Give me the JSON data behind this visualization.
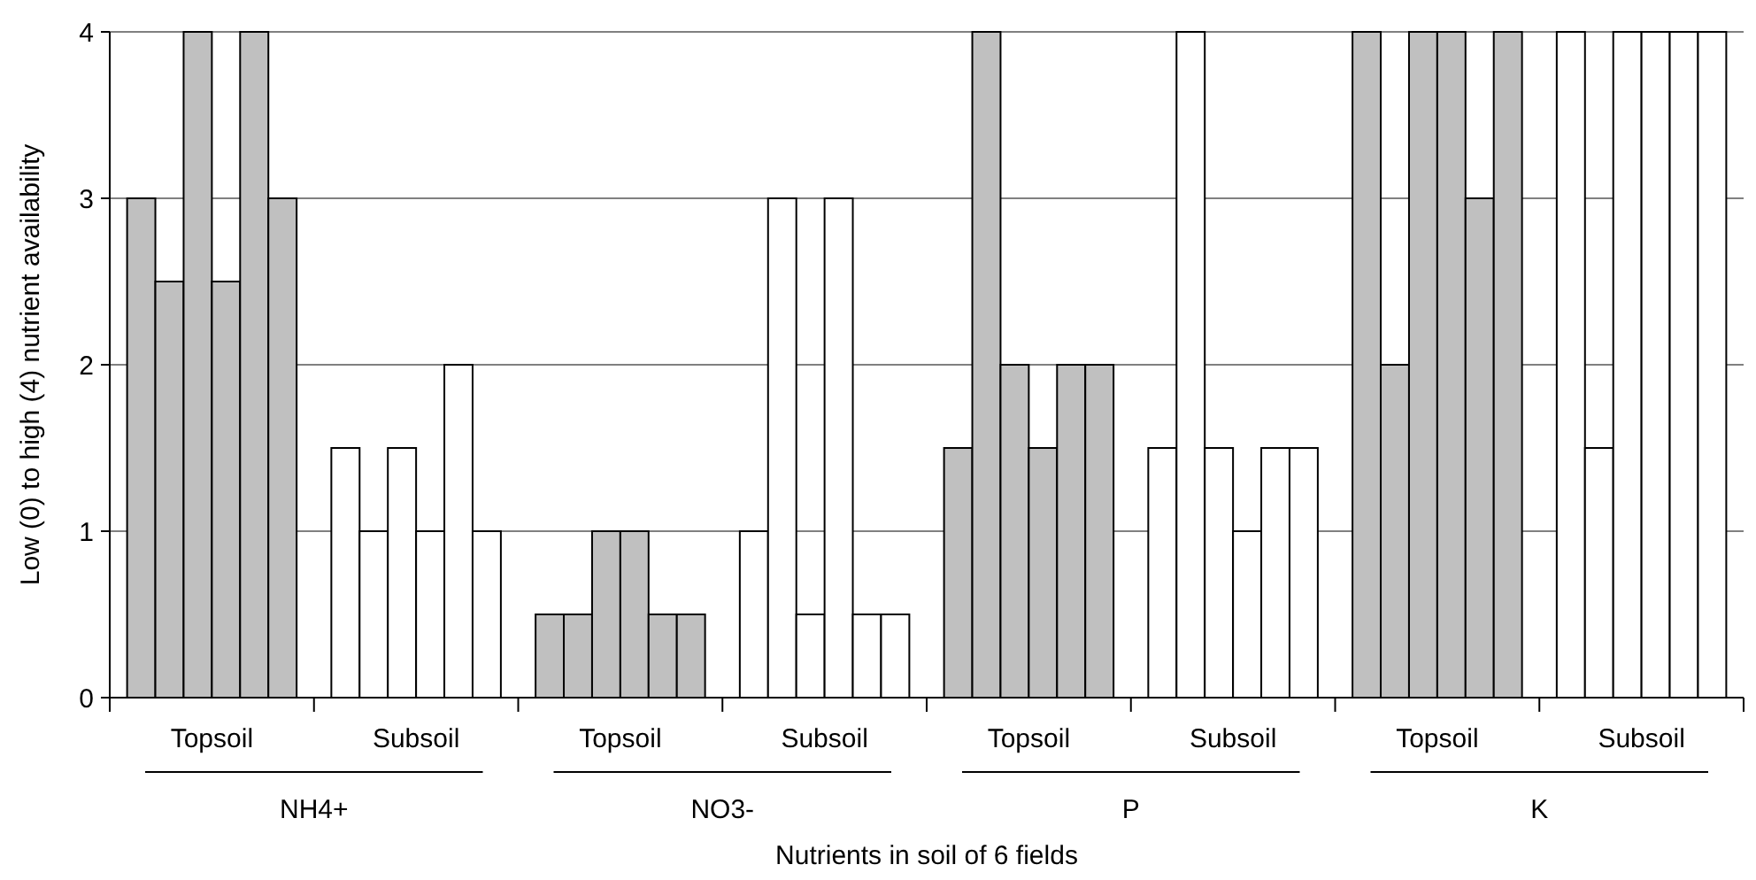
{
  "chart_data": {
    "type": "bar",
    "xlabel": "Nutrients in soil of 6 fields",
    "ylabel": "Low (0) to high (4) nutrient availability",
    "categories": [
      "Topsoil",
      "Subsoil",
      "Topsoil",
      "Subsoil",
      "Topsoil",
      "Subsoil",
      "Topsoil",
      "Subsoil"
    ],
    "annotations": [
      "NH4+",
      "NO3-",
      "P",
      "K"
    ],
    "series": [
      {
        "colors": [
          "#c0c0c0",
          "#ffffff",
          "#c0c0c0",
          "#ffffff",
          "#c0c0c0",
          "#ffffff",
          "#c0c0c0",
          "#ffffff"
        ],
        "values": [
          3,
          1.5,
          0.5,
          1,
          1.5,
          1.5,
          4,
          4
        ]
      },
      {
        "colors": [
          "#c0c0c0",
          "#ffffff",
          "#c0c0c0",
          "#ffffff",
          "#c0c0c0",
          "#ffffff",
          "#c0c0c0",
          "#ffffff"
        ],
        "values": [
          2.5,
          1,
          0.5,
          3,
          4,
          4,
          2,
          1.5
        ]
      },
      {
        "colors": [
          "#c0c0c0",
          "#ffffff",
          "#c0c0c0",
          "#ffffff",
          "#c0c0c0",
          "#ffffff",
          "#c0c0c0",
          "#ffffff"
        ],
        "values": [
          4,
          1.5,
          1,
          0.5,
          2,
          1.5,
          4,
          4
        ]
      },
      {
        "colors": [
          "#c0c0c0",
          "#ffffff",
          "#c0c0c0",
          "#ffffff",
          "#c0c0c0",
          "#ffffff",
          "#c0c0c0",
          "#ffffff"
        ],
        "values": [
          2.5,
          1,
          1,
          3,
          1.5,
          1,
          4,
          4
        ]
      },
      {
        "colors": [
          "#c0c0c0",
          "#ffffff",
          "#c0c0c0",
          "#ffffff",
          "#c0c0c0",
          "#ffffff",
          "#c0c0c0",
          "#ffffff"
        ],
        "values": [
          4,
          2,
          0.5,
          0.5,
          2,
          1.5,
          3,
          4
        ]
      },
      {
        "colors": [
          "#c0c0c0",
          "#ffffff",
          "#c0c0c0",
          "#ffffff",
          "#c0c0c0",
          "#ffffff",
          "#c0c0c0",
          "#ffffff"
        ],
        "values": [
          3,
          1,
          0.5,
          0.5,
          2,
          1.5,
          4,
          4
        ]
      }
    ],
    "ylim": [
      0,
      4
    ],
    "yticks": [
      0,
      1,
      2,
      3,
      4
    ],
    "grid": "y"
  }
}
